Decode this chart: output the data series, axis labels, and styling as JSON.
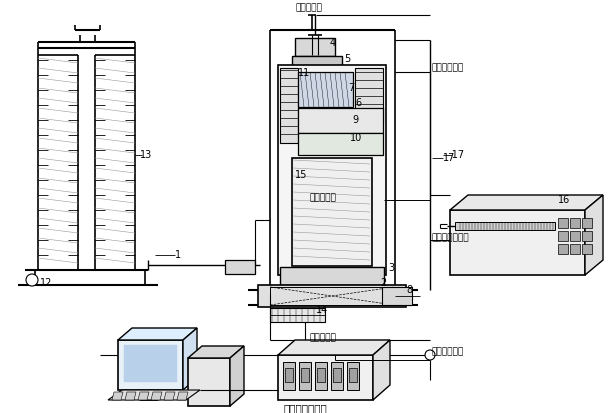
{
  "bg_color": "#ffffff",
  "lc": "#000000",
  "gc": "#999999",
  "labels": {
    "displacement": "位移数据线",
    "cooling_temp": "制冷头温控线",
    "temperature": "温度数据线",
    "flow": "流量数据线",
    "hydraulic": "液压体积控制线",
    "acquisition": "采集控制总线",
    "data_box": "数据采集控制盒"
  },
  "figsize": [
    6.12,
    4.13
  ],
  "dpi": 100
}
